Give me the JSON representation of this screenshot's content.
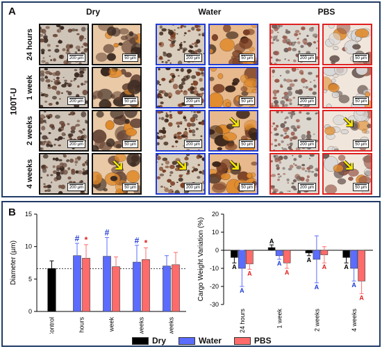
{
  "panel_a": {
    "label": "A",
    "side_label": "100T-U",
    "columns": [
      "Dry",
      "Water",
      "PBS"
    ],
    "rows": [
      "24 hours",
      "1 week",
      "2 weeks",
      "4 weeks"
    ],
    "scale_large": "200 µm",
    "scale_small": "50 µm",
    "frame_colors": {
      "Dry": "#111111",
      "Water": "#1f3bd6",
      "PBS": "#e02020"
    },
    "arrow_color": "#f5e400"
  },
  "panel_b": {
    "label": "B"
  },
  "legend": [
    {
      "label": "Dry",
      "color": "#000000"
    },
    {
      "label": "Water",
      "color": "#5b6cff"
    },
    {
      "label": "PBS",
      "color": "#ff6b6b"
    }
  ],
  "chart_data": [
    {
      "type": "bar",
      "ylabel": "Diameter (µm)",
      "ylim": [
        0,
        15
      ],
      "yticks": [
        0,
        5,
        10,
        15
      ],
      "control": {
        "label": "Control",
        "value": 6.6,
        "err": 1.2
      },
      "reference_line": 6.6,
      "categories": [
        "24 hours",
        "1 week",
        "2 weeks",
        "4 weeks"
      ],
      "series": [
        {
          "name": "Water",
          "values": [
            8.6,
            8.5,
            7.6,
            7.0
          ],
          "errors": [
            1.9,
            2.9,
            2.6,
            1.6
          ],
          "marks": [
            "#",
            "#",
            "#",
            ""
          ]
        },
        {
          "name": "PBS",
          "values": [
            8.2,
            6.9,
            8.0,
            7.2
          ],
          "errors": [
            2.1,
            1.5,
            1.8,
            1.9
          ],
          "marks": [
            "*",
            "",
            "*",
            ""
          ]
        }
      ]
    },
    {
      "type": "bar",
      "ylabel": "Cargo Weight Variation (%)",
      "ylim": [
        -30,
        20
      ],
      "yticks": [
        -30,
        -20,
        -10,
        0,
        10,
        20
      ],
      "categories": [
        "24 hours",
        "1 week",
        "2 weeks",
        "4 weeks"
      ],
      "series": [
        {
          "name": "Dry",
          "values": [
            -4,
            1.5,
            -1.5,
            -4
          ],
          "errors": [
            3,
            1.5,
            1.5,
            3
          ],
          "marks": [
            "A",
            "A",
            "A",
            "A"
          ]
        },
        {
          "name": "Water",
          "values": [
            -10,
            -3,
            -5,
            -10
          ],
          "errors": [
            10,
            2,
            13,
            7
          ],
          "marks": [
            "A",
            "A",
            "A",
            "A"
          ]
        },
        {
          "name": "PBS",
          "values": [
            -7.5,
            -7,
            -2.5,
            -17
          ],
          "errors": [
            3,
            3,
            4.5,
            7
          ],
          "marks": [
            "A",
            "A",
            "A",
            "A"
          ]
        }
      ]
    }
  ]
}
